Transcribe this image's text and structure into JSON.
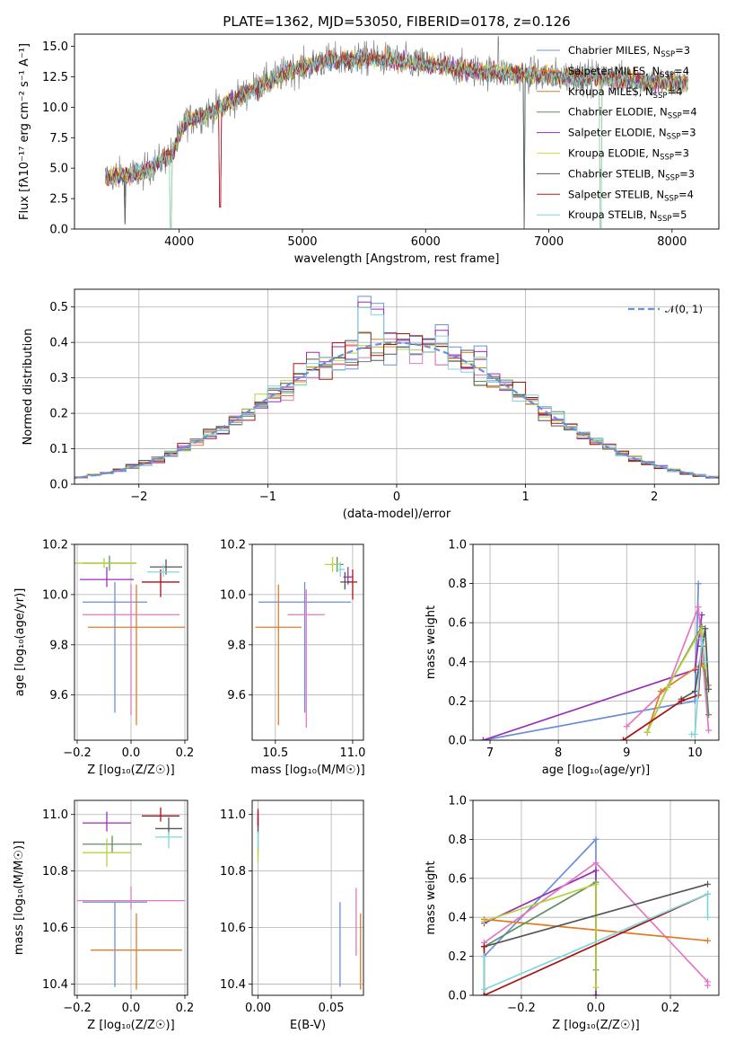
{
  "figure": {
    "title": "PLATE=1362, MJD=53050, FIBERID=0178, z=0.126"
  },
  "colors": {
    "chabrier_miles": "#6f95de",
    "salpeter_miles": "#ff7f2a",
    "kroupa_miles": "#c7822a",
    "chabrier_elodie": "#5f8f5f",
    "salpeter_elodie": "#9a2fb5",
    "kroupa_elodie": "#d8e04a",
    "chabrier_stelib": "#555555",
    "salpeter_stelib": "#b31818",
    "kroupa_stelib": "#7fd6dc",
    "pink": "#e377c2",
    "orange": "#e07b28",
    "blue": "#6a8fd8",
    "green": "#5f8f5f",
    "purple": "#9a2fb5",
    "yellowgreen": "#b5d33a",
    "darkgray": "#555555",
    "darkred": "#a81212",
    "cyan": "#7fd6dc"
  },
  "chart_data": [
    {
      "id": "spectrum",
      "type": "line",
      "title": "PLATE=1362, MJD=53050, FIBERID=0178, z=0.126",
      "xlabel": "wavelength [Angstrom, rest frame]",
      "ylabel": "Flux [f_λ10⁻¹⁷ erg cm⁻² s⁻¹ A⁻¹]",
      "xlim": [
        3150,
        8380
      ],
      "ylim": [
        0,
        16
      ],
      "xticks": [
        4000,
        5000,
        6000,
        7000,
        8000
      ],
      "yticks": [
        0.0,
        2.5,
        5.0,
        7.5,
        10.0,
        12.5,
        15.0
      ],
      "legend_position": "upper-right",
      "legend": [
        "Chabrier MILES, N_SSP=3",
        "Salpeter MILES, N_SSP=4",
        "Kroupa MILES, N_SSP=4",
        "Chabrier ELODIE, N_SSP=4",
        "Salpeter ELODIE, N_SSP=3",
        "Kroupa ELODIE, N_SSP=3",
        "Chabrier STELIB, N_SSP=3",
        "Salpeter STELIB, N_SSP=4",
        "Kroupa STELIB, N_SSP=5"
      ],
      "legend_main": [
        "Chabrier MILES, N",
        "Salpeter MILES, N",
        "Kroupa MILES, N",
        "Chabrier ELODIE, N",
        "Salpeter ELODIE, N",
        "Kroupa ELODIE, N",
        "Chabrier STELIB, N",
        "Salpeter STELIB, N",
        "Kroupa STELIB, N"
      ],
      "legend_sub": "SSP",
      "legend_tail": [
        "=3",
        "=4",
        "=4",
        "=4",
        "=3",
        "=3",
        "=3",
        "=4",
        "=5"
      ],
      "data_x_range": [
        3400,
        8130
      ],
      "continuum_points": [
        [
          3400,
          4.3
        ],
        [
          3700,
          4.6
        ],
        [
          3950,
          6.3
        ],
        [
          4050,
          8.8
        ],
        [
          4300,
          9.8
        ],
        [
          4600,
          11.5
        ],
        [
          4900,
          13.0
        ],
        [
          5200,
          13.8
        ],
        [
          5600,
          14.0
        ],
        [
          6000,
          13.5
        ],
        [
          6500,
          12.9
        ],
        [
          7000,
          12.6
        ],
        [
          7500,
          12.4
        ],
        [
          8000,
          12.0
        ]
      ],
      "dips": [
        [
          3560,
          0.4
        ],
        [
          3930,
          0.1
        ],
        [
          4330,
          1.8
        ],
        [
          6800,
          0.0
        ],
        [
          7420,
          0.1
        ]
      ],
      "spike": [
        6590,
        15.8
      ]
    },
    {
      "id": "residuals",
      "type": "histogram",
      "xlabel": "(data-model)/error",
      "ylabel": "Normed distribution",
      "xlim": [
        -2.5,
        2.5
      ],
      "ylim": [
        0,
        0.55
      ],
      "xticks": [
        -2,
        -1,
        0,
        1,
        2
      ],
      "yticks": [
        0.0,
        0.1,
        0.2,
        0.3,
        0.4,
        0.5
      ],
      "bin_width": 0.1,
      "legend_position": "upper-right",
      "legend": "𝒩(0, 1)",
      "peak_bars": {
        "-0.3": 0.53,
        "-0.2": 0.51,
        "0.6": 0.39,
        "0.3": 0.45
      }
    },
    {
      "id": "age_vs_Z",
      "type": "errorbar",
      "xlabel": "Z [log₁₀(Z/Z☉)]",
      "ylabel": "age [log₁₀(age/yr)]",
      "xlim": [
        -0.21,
        0.21
      ],
      "ylim": [
        9.42,
        10.2
      ],
      "xticks": [
        -0.2,
        0.0,
        0.2
      ],
      "yticks": [
        9.6,
        9.8,
        10.0,
        10.2
      ],
      "points": [
        {
          "x": -0.06,
          "y": 9.97,
          "xerr": 0.12,
          "yerr_lo": 0.44,
          "yerr_hi": 0.08,
          "color": "blue"
        },
        {
          "x": 0.02,
          "y": 9.87,
          "xerr": 0.18,
          "yerr_lo": 0.39,
          "yerr_hi": 0.17,
          "color": "orange"
        },
        {
          "x": 0.0,
          "y": 9.92,
          "xerr": 0.18,
          "yerr_lo": 0.4,
          "yerr_hi": 0.12,
          "color": "pink"
        },
        {
          "x": -0.08,
          "y": 10.125,
          "xerr": 0.1,
          "yerr_lo": 0.03,
          "yerr_hi": 0.03,
          "color": "green"
        },
        {
          "x": -0.09,
          "y": 10.06,
          "xerr": 0.1,
          "yerr_lo": 0.03,
          "yerr_hi": 0.05,
          "color": "purple"
        },
        {
          "x": -0.1,
          "y": 10.125,
          "xerr": 0.12,
          "yerr_lo": 0.02,
          "yerr_hi": 0.02,
          "color": "yellowgreen"
        },
        {
          "x": 0.13,
          "y": 10.11,
          "xerr": 0.06,
          "yerr_lo": 0.03,
          "yerr_hi": 0.03,
          "color": "darkgray"
        },
        {
          "x": 0.11,
          "y": 10.05,
          "xerr": 0.07,
          "yerr_lo": 0.06,
          "yerr_hi": 0.05,
          "color": "darkred"
        },
        {
          "x": 0.12,
          "y": 10.09,
          "xerr": 0.06,
          "yerr_lo": 0.02,
          "yerr_hi": 0.03,
          "color": "cyan"
        }
      ]
    },
    {
      "id": "age_vs_mass",
      "type": "errorbar",
      "xlabel": "mass [log₁₀(M/M☉)]",
      "ylabel": "",
      "xlim": [
        10.35,
        11.07
      ],
      "ylim": [
        9.42,
        10.2
      ],
      "xticks": [
        10.5,
        11.0
      ],
      "yticks": [
        9.6,
        9.8,
        10.0,
        10.2
      ],
      "points": [
        {
          "x": 10.69,
          "y": 9.97,
          "xerr": 0.3,
          "yerr_lo": 0.44,
          "yerr_hi": 0.08,
          "color": "blue"
        },
        {
          "x": 10.52,
          "y": 9.87,
          "xerr": 0.15,
          "yerr_lo": 0.39,
          "yerr_hi": 0.17,
          "color": "orange"
        },
        {
          "x": 10.7,
          "y": 9.92,
          "xerr": 0.12,
          "yerr_lo": 0.45,
          "yerr_hi": 0.1,
          "color": "pink"
        },
        {
          "x": 10.9,
          "y": 10.12,
          "xerr": 0.04,
          "yerr_lo": 0.03,
          "yerr_hi": 0.03,
          "color": "green"
        },
        {
          "x": 10.97,
          "y": 10.07,
          "xerr": 0.03,
          "yerr_lo": 0.03,
          "yerr_hi": 0.04,
          "color": "purple"
        },
        {
          "x": 10.87,
          "y": 10.12,
          "xerr": 0.05,
          "yerr_lo": 0.03,
          "yerr_hi": 0.03,
          "color": "yellowgreen"
        },
        {
          "x": 10.95,
          "y": 10.05,
          "xerr": 0.03,
          "yerr_lo": 0.03,
          "yerr_hi": 0.04,
          "color": "darkgray"
        },
        {
          "x": 11.0,
          "y": 10.05,
          "xerr": 0.03,
          "yerr_lo": 0.07,
          "yerr_hi": 0.05,
          "color": "darkred"
        },
        {
          "x": 10.92,
          "y": 10.1,
          "xerr": 0.03,
          "yerr_lo": 0.03,
          "yerr_hi": 0.03,
          "color": "cyan"
        }
      ]
    },
    {
      "id": "weight_vs_age",
      "type": "line",
      "xlabel": "age [log₁₀(age/yr)]",
      "ylabel": "mass weight",
      "xlim": [
        6.75,
        10.35
      ],
      "ylim": [
        0,
        1
      ],
      "xticks": [
        7,
        8,
        9,
        10
      ],
      "yticks": [
        0.0,
        0.2,
        0.4,
        0.6,
        0.8,
        1.0
      ],
      "series": [
        {
          "color": "blue",
          "x": [
            6.9,
            10.0,
            10.05
          ],
          "y": [
            0.0,
            0.2,
            0.8
          ]
        },
        {
          "color": "purple",
          "x": [
            6.9,
            10.0,
            10.1
          ],
          "y": [
            0.0,
            0.36,
            0.64
          ]
        },
        {
          "color": "pink",
          "x": [
            9.0,
            9.6,
            10.05,
            10.2
          ],
          "y": [
            0.07,
            0.27,
            0.68,
            0.05
          ]
        },
        {
          "color": "orange",
          "x": [
            9.3,
            9.5,
            10.1,
            10.2
          ],
          "y": [
            0.04,
            0.25,
            0.39,
            0.28
          ]
        },
        {
          "color": "green",
          "x": [
            9.3,
            9.6,
            10.1,
            10.2
          ],
          "y": [
            0.04,
            0.27,
            0.58,
            0.13
          ]
        },
        {
          "color": "yellowgreen",
          "x": [
            9.3,
            9.6,
            10.1,
            10.15
          ],
          "y": [
            0.04,
            0.27,
            0.57,
            0.38
          ]
        },
        {
          "color": "darkgray",
          "x": [
            9.8,
            10.0,
            10.15,
            10.2
          ],
          "y": [
            0.21,
            0.25,
            0.57,
            0.26
          ]
        },
        {
          "color": "darkred",
          "x": [
            8.95,
            9.8,
            10.05,
            10.1
          ],
          "y": [
            0.0,
            0.2,
            0.23,
            0.48
          ]
        },
        {
          "color": "cyan",
          "x": [
            9.95,
            10.0,
            10.1,
            10.15
          ],
          "y": [
            0.03,
            0.03,
            0.52,
            0.4
          ]
        }
      ]
    },
    {
      "id": "mass_vs_Z",
      "type": "errorbar",
      "xlabel": "Z [log₁₀(Z/Z☉)]",
      "ylabel": "mass [log₁₀(M/M☉)]",
      "xlim": [
        -0.21,
        0.21
      ],
      "ylim": [
        10.36,
        11.05
      ],
      "xticks": [
        -0.2,
        0.0,
        0.2
      ],
      "yticks": [
        10.4,
        10.6,
        10.8,
        11.0
      ],
      "points": [
        {
          "x": -0.06,
          "y": 10.69,
          "xerr": 0.12,
          "yerr_lo": 0.3,
          "yerr_hi": 0.0,
          "color": "blue"
        },
        {
          "x": 0.02,
          "y": 10.52,
          "xerr": 0.17,
          "yerr_lo": 0.14,
          "yerr_hi": 0.13,
          "color": "orange"
        },
        {
          "x": 0.0,
          "y": 10.695,
          "xerr": 0.2,
          "yerr_lo": 0.03,
          "yerr_hi": 0.05,
          "color": "pink"
        },
        {
          "x": -0.07,
          "y": 10.895,
          "xerr": 0.11,
          "yerr_lo": 0.03,
          "yerr_hi": 0.03,
          "color": "green"
        },
        {
          "x": -0.09,
          "y": 10.97,
          "xerr": 0.09,
          "yerr_lo": 0.03,
          "yerr_hi": 0.04,
          "color": "purple"
        },
        {
          "x": -0.09,
          "y": 10.865,
          "xerr": 0.09,
          "yerr_lo": 0.05,
          "yerr_hi": 0.05,
          "color": "yellowgreen"
        },
        {
          "x": 0.14,
          "y": 10.95,
          "xerr": 0.05,
          "yerr_lo": 0.02,
          "yerr_hi": 0.04,
          "color": "darkgray"
        },
        {
          "x": 0.11,
          "y": 10.995,
          "xerr": 0.07,
          "yerr_lo": 0.02,
          "yerr_hi": 0.03,
          "color": "darkred"
        },
        {
          "x": 0.14,
          "y": 10.92,
          "xerr": 0.05,
          "yerr_lo": 0.04,
          "yerr_hi": 0.02,
          "color": "cyan"
        }
      ]
    },
    {
      "id": "mass_vs_EBV",
      "type": "errorbar",
      "xlabel": "E(B-V)",
      "ylabel": "",
      "xlim": [
        -0.004,
        0.072
      ],
      "ylim": [
        10.36,
        11.05
      ],
      "xticks": [
        0.0,
        0.05
      ],
      "yticks": [
        10.4,
        10.6,
        10.8,
        11.0
      ],
      "points": [
        {
          "x": 0.056,
          "y": 10.69,
          "xerr": 0.0,
          "yerr_lo": 0.3,
          "yerr_hi": 0.0,
          "color": "blue"
        },
        {
          "x": 0.07,
          "y": 10.52,
          "xerr": 0.0,
          "yerr_lo": 0.14,
          "yerr_hi": 0.13,
          "color": "orange"
        },
        {
          "x": 0.067,
          "y": 10.62,
          "xerr": 0.0,
          "yerr_lo": 0.12,
          "yerr_hi": 0.12,
          "color": "pink"
        },
        {
          "x": 0.0,
          "y": 10.9,
          "xerr": 0.0,
          "yerr_lo": 0.04,
          "yerr_hi": 0.04,
          "color": "green"
        },
        {
          "x": 0.0,
          "y": 10.97,
          "xerr": 0.0,
          "yerr_lo": 0.03,
          "yerr_hi": 0.04,
          "color": "purple"
        },
        {
          "x": 0.0,
          "y": 10.87,
          "xerr": 0.0,
          "yerr_lo": 0.04,
          "yerr_hi": 0.04,
          "color": "yellowgreen"
        },
        {
          "x": 0.0,
          "y": 10.95,
          "xerr": 0.0,
          "yerr_lo": 0.02,
          "yerr_hi": 0.04,
          "color": "darkgray"
        },
        {
          "x": 0.0,
          "y": 10.99,
          "xerr": 0.0,
          "yerr_lo": 0.03,
          "yerr_hi": 0.03,
          "color": "darkred"
        },
        {
          "x": 0.0,
          "y": 10.92,
          "xerr": 0.0,
          "yerr_lo": 0.04,
          "yerr_hi": 0.02,
          "color": "cyan"
        }
      ]
    },
    {
      "id": "weight_vs_Z",
      "type": "line",
      "xlabel": "Z [log₁₀(Z/Z☉)]",
      "ylabel": "mass weight",
      "xlim": [
        -0.33,
        0.33
      ],
      "ylim": [
        0,
        1
      ],
      "xticks": [
        -0.2,
        0.0,
        0.2
      ],
      "yticks": [
        0.0,
        0.2,
        0.4,
        0.6,
        0.8,
        1.0
      ],
      "series": [
        {
          "color": "blue",
          "x": [
            -0.3,
            0.0,
            0.0
          ],
          "y": [
            0.2,
            0.8,
            0.0
          ]
        },
        {
          "color": "purple",
          "x": [
            -0.3,
            0.0,
            0.0
          ],
          "y": [
            0.37,
            0.64,
            0.0
          ]
        },
        {
          "color": "pink",
          "x": [
            -0.3,
            0.0,
            0.3,
            0.3
          ],
          "y": [
            0.27,
            0.68,
            0.07,
            0.05
          ]
        },
        {
          "color": "orange",
          "x": [
            -0.3,
            0.3
          ],
          "y": [
            0.39,
            0.28
          ]
        },
        {
          "color": "green",
          "x": [
            -0.3,
            0.0,
            0.0
          ],
          "y": [
            0.25,
            0.58,
            0.13
          ]
        },
        {
          "color": "yellowgreen",
          "x": [
            -0.3,
            0.0,
            0.0
          ],
          "y": [
            0.38,
            0.57,
            0.04
          ]
        },
        {
          "color": "darkgray",
          "x": [
            -0.3,
            0.3
          ],
          "y": [
            0.25,
            0.57
          ]
        },
        {
          "color": "darkred",
          "x": [
            -0.3,
            -0.3,
            0.3
          ],
          "y": [
            0.25,
            0.0,
            0.52
          ]
        },
        {
          "color": "cyan",
          "x": [
            -0.3,
            -0.3,
            0.3,
            0.3
          ],
          "y": [
            0.2,
            0.03,
            0.52,
            0.4
          ]
        }
      ]
    }
  ]
}
